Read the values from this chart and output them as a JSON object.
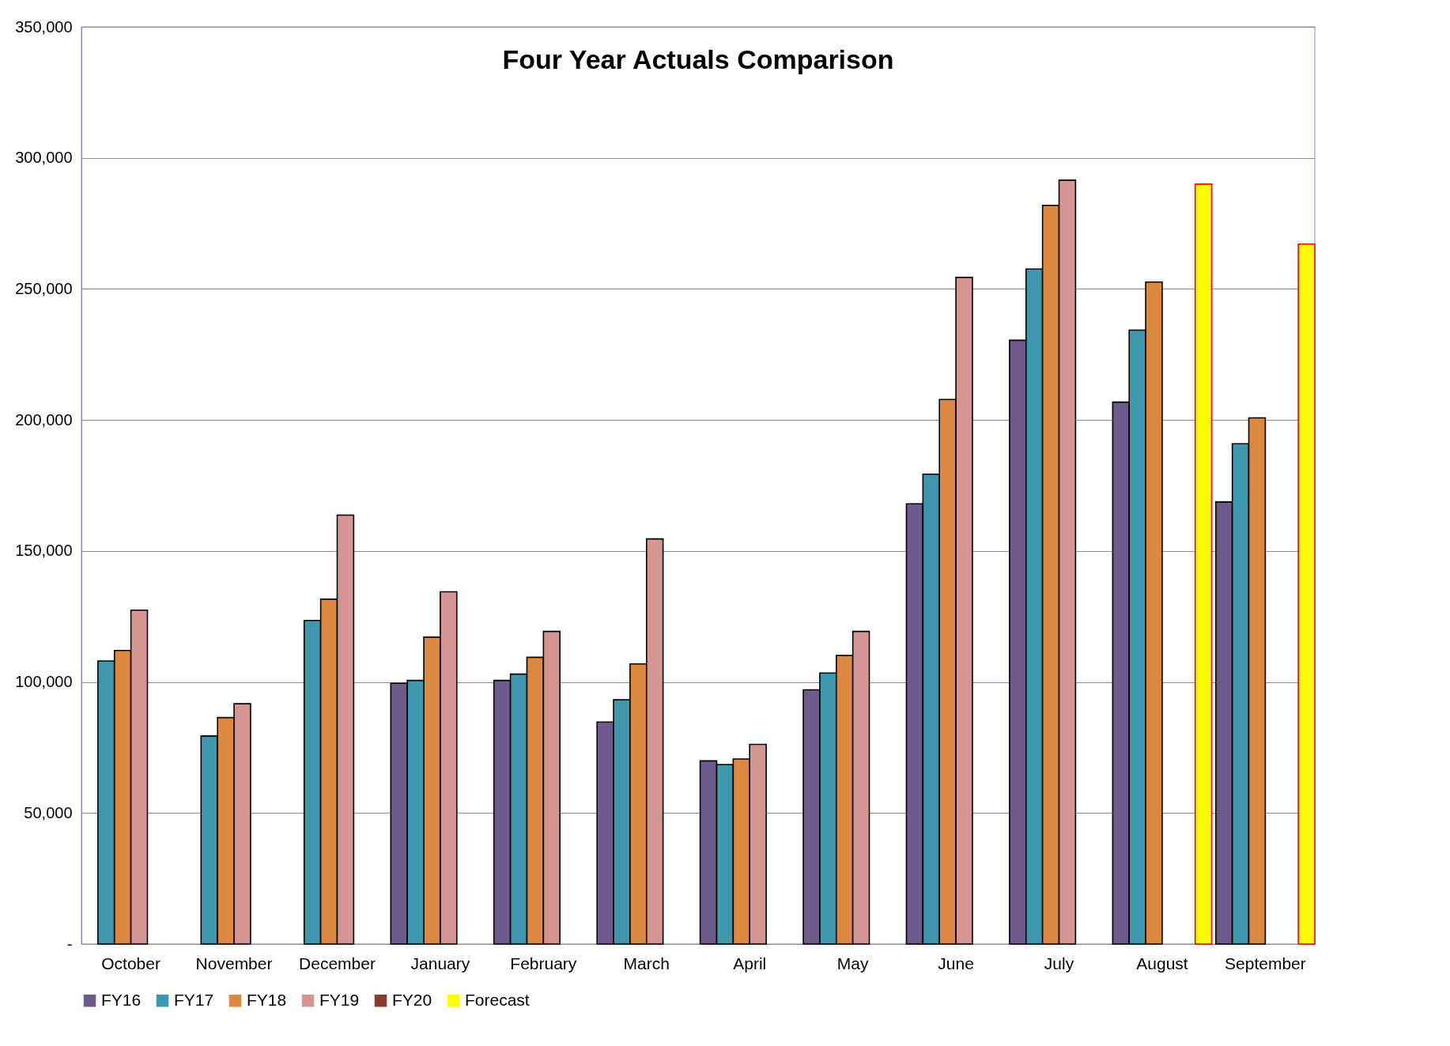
{
  "chart_data": {
    "type": "bar",
    "title": "Four Year Actuals Comparison",
    "categories": [
      "October",
      "November",
      "December",
      "January",
      "February",
      "March",
      "April",
      "May",
      "June",
      "July",
      "August",
      "September"
    ],
    "series": [
      {
        "name": "FY16",
        "color": "#6f5a8e",
        "values": [
          null,
          null,
          null,
          99500,
          100600,
          84700,
          69900,
          97000,
          168000,
          230400,
          206800,
          168700
        ]
      },
      {
        "name": "FY17",
        "color": "#3f97ad",
        "values": [
          108000,
          79400,
          123500,
          100600,
          103000,
          93200,
          68500,
          103400,
          179300,
          257600,
          234300,
          190900
        ]
      },
      {
        "name": "FY18",
        "color": "#dd8840",
        "values": [
          112000,
          86400,
          131600,
          117100,
          109400,
          106900,
          70600,
          110100,
          207800,
          281900,
          252600,
          200800
        ]
      },
      {
        "name": "FY19",
        "color": "#d49593",
        "values": [
          127400,
          91700,
          163700,
          134400,
          119300,
          154600,
          76200,
          119300,
          254400,
          291500,
          null,
          null
        ]
      },
      {
        "name": "FY20",
        "color": "#8b3a2f",
        "values": [
          null,
          null,
          null,
          null,
          null,
          null,
          null,
          null,
          null,
          null,
          null,
          null
        ]
      },
      {
        "name": "Forecast",
        "color": "#ffff00",
        "values": [
          null,
          null,
          null,
          null,
          null,
          null,
          null,
          null,
          null,
          null,
          290000,
          267100
        ]
      }
    ],
    "ylim": [
      0,
      350000
    ],
    "yticks": [
      {
        "value": 0,
        "label": "-"
      },
      {
        "value": 50000,
        "label": "50,000"
      },
      {
        "value": 100000,
        "label": "100,000"
      },
      {
        "value": 150000,
        "label": "150,000"
      },
      {
        "value": 200000,
        "label": "200,000"
      },
      {
        "value": 250000,
        "label": "250,000"
      },
      {
        "value": 300000,
        "label": "300,000"
      },
      {
        "value": 350000,
        "label": "350,000"
      }
    ],
    "grid": "y",
    "legend": "bottom"
  }
}
